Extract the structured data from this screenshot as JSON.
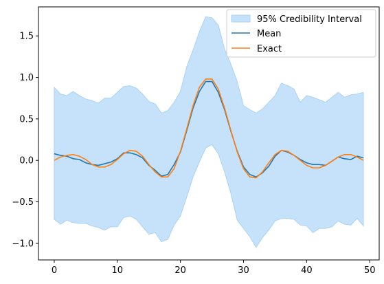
{
  "chart_data": {
    "type": "line",
    "xlim": [
      -2.5,
      51.5
    ],
    "ylim": [
      -1.2,
      1.85
    ],
    "xticks": [
      "0",
      "10",
      "20",
      "30",
      "40",
      "50"
    ],
    "xtick_values": [
      0,
      10,
      20,
      30,
      40,
      50
    ],
    "yticks": [
      "−1.0",
      "−0.5",
      "0.0",
      "0.5",
      "1.0",
      "1.5"
    ],
    "ytick_values": [
      -1.0,
      -0.5,
      0.0,
      0.5,
      1.0,
      1.5
    ],
    "grid": false,
    "legend_position": "top-right",
    "x": [
      0,
      1,
      2,
      3,
      4,
      5,
      6,
      7,
      8,
      9,
      10,
      11,
      12,
      13,
      14,
      15,
      16,
      17,
      18,
      19,
      20,
      21,
      22,
      23,
      24,
      25,
      26,
      27,
      28,
      29,
      30,
      31,
      32,
      33,
      34,
      35,
      36,
      37,
      38,
      39,
      40,
      41,
      42,
      43,
      44,
      45,
      46,
      47,
      48,
      49
    ],
    "band": {
      "name": "95% Credibility Interval",
      "color": "#a8d3f7",
      "upper": [
        0.88,
        0.8,
        0.78,
        0.83,
        0.78,
        0.74,
        0.72,
        0.69,
        0.75,
        0.75,
        0.82,
        0.89,
        0.9,
        0.87,
        0.8,
        0.71,
        0.68,
        0.57,
        0.6,
        0.7,
        0.83,
        1.13,
        1.33,
        1.55,
        1.73,
        1.72,
        1.63,
        1.34,
        1.16,
        0.95,
        0.66,
        0.61,
        0.57,
        0.62,
        0.7,
        0.78,
        0.93,
        0.9,
        0.86,
        0.7,
        0.78,
        0.76,
        0.73,
        0.7,
        0.76,
        0.82,
        0.76,
        0.79,
        0.8,
        0.82
      ],
      "lower": [
        -0.71,
        -0.77,
        -0.72,
        -0.75,
        -0.76,
        -0.76,
        -0.79,
        -0.81,
        -0.84,
        -0.8,
        -0.8,
        -0.69,
        -0.67,
        -0.71,
        -0.8,
        -0.89,
        -0.87,
        -0.98,
        -0.95,
        -0.78,
        -0.67,
        -0.44,
        -0.2,
        -0.02,
        0.15,
        0.19,
        0.08,
        -0.14,
        -0.4,
        -0.72,
        -0.82,
        -0.92,
        -1.05,
        -0.93,
        -0.84,
        -0.73,
        -0.7,
        -0.7,
        -0.71,
        -0.78,
        -0.79,
        -0.87,
        -0.82,
        -0.82,
        -0.8,
        -0.73,
        -0.77,
        -0.78,
        -0.7,
        -0.79
      ]
    },
    "series": [
      {
        "name": "Mean",
        "color": "#1f77b4",
        "values": [
          0.08,
          0.06,
          0.05,
          0.02,
          0.01,
          -0.03,
          -0.05,
          -0.06,
          -0.04,
          -0.02,
          0.02,
          0.09,
          0.09,
          0.07,
          0.03,
          -0.06,
          -0.12,
          -0.19,
          -0.17,
          -0.05,
          0.1,
          0.36,
          0.63,
          0.83,
          0.95,
          0.95,
          0.82,
          0.61,
          0.35,
          0.11,
          -0.08,
          -0.17,
          -0.2,
          -0.15,
          -0.07,
          0.05,
          0.12,
          0.1,
          0.06,
          0.01,
          -0.03,
          -0.05,
          -0.05,
          -0.06,
          -0.01,
          0.04,
          0.02,
          0.01,
          0.05,
          0.03
        ]
      },
      {
        "name": "Exact",
        "color": "#ff7f0e",
        "values": [
          0.0,
          0.04,
          0.06,
          0.07,
          0.05,
          0.01,
          -0.05,
          -0.08,
          -0.08,
          -0.05,
          0.01,
          0.08,
          0.12,
          0.11,
          0.05,
          -0.05,
          -0.14,
          -0.2,
          -0.2,
          -0.1,
          0.11,
          0.38,
          0.66,
          0.88,
          0.98,
          0.98,
          0.86,
          0.63,
          0.36,
          0.1,
          -0.1,
          -0.2,
          -0.21,
          -0.14,
          -0.03,
          0.07,
          0.12,
          0.11,
          0.06,
          0.0,
          -0.06,
          -0.09,
          -0.09,
          -0.06,
          -0.01,
          0.04,
          0.07,
          0.07,
          0.04,
          0.0
        ]
      }
    ]
  }
}
